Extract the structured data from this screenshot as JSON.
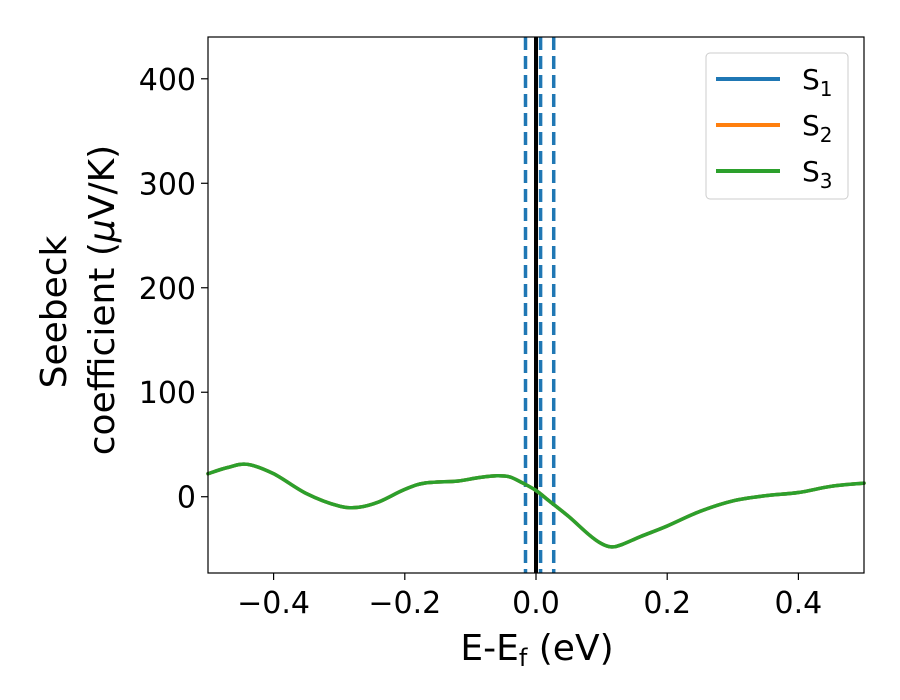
{
  "chart_data": {
    "type": "line",
    "xlabel": "E-E",
    "xlabel_sub": "f",
    "xlabel_unit": " (eV)",
    "ylabel_line1": "Seebeck",
    "ylabel_line2_prefix": "coefficient  (",
    "ylabel_mu": "μ",
    "ylabel_line2_suffix": "V/K)",
    "xlim": [
      -0.5,
      0.5
    ],
    "ylim": [
      -73,
      440
    ],
    "xticks": [
      -0.4,
      -0.2,
      0.0,
      0.2,
      0.4
    ],
    "xtick_labels": [
      "−0.4",
      "−0.2",
      "0.0",
      "0.2",
      "0.4"
    ],
    "yticks": [
      0,
      100,
      200,
      300,
      400
    ],
    "ytick_labels": [
      "0",
      "100",
      "200",
      "300",
      "400"
    ],
    "legend_position": "top-right",
    "series": [
      {
        "name": "S",
        "sub": "1",
        "color": "#1f77b4"
      },
      {
        "name": "S",
        "sub": "2",
        "color": "#ff7f0e"
      },
      {
        "name": "S",
        "sub": "3",
        "color": "#2ca02c"
      }
    ],
    "curve": {
      "x": [
        -0.5,
        -0.47,
        -0.44,
        -0.4,
        -0.35,
        -0.3,
        -0.27,
        -0.24,
        -0.2,
        -0.17,
        -0.12,
        -0.09,
        -0.06,
        -0.04,
        -0.02,
        0.0,
        0.02,
        0.05,
        0.08,
        0.1,
        0.115,
        0.13,
        0.16,
        0.2,
        0.25,
        0.3,
        0.35,
        0.4,
        0.45,
        0.5
      ],
      "y": [
        22,
        28,
        31,
        22,
        3,
        -9,
        -10,
        -5,
        7,
        13,
        15,
        18,
        20,
        19,
        13,
        6,
        -4,
        -19,
        -36,
        -45,
        -48,
        -46,
        -38,
        -28,
        -14,
        -4,
        1,
        4,
        10,
        13
      ],
      "color": "#2ca02c"
    },
    "vlines": [
      {
        "x": 0.0,
        "style": "solid",
        "color": "#000000"
      },
      {
        "x": -0.016,
        "style": "dashed",
        "color": "#1f77b4"
      },
      {
        "x": 0.007,
        "style": "dashed",
        "color": "#1f77b4"
      },
      {
        "x": 0.027,
        "style": "dashed",
        "color": "#1f77b4"
      }
    ]
  }
}
